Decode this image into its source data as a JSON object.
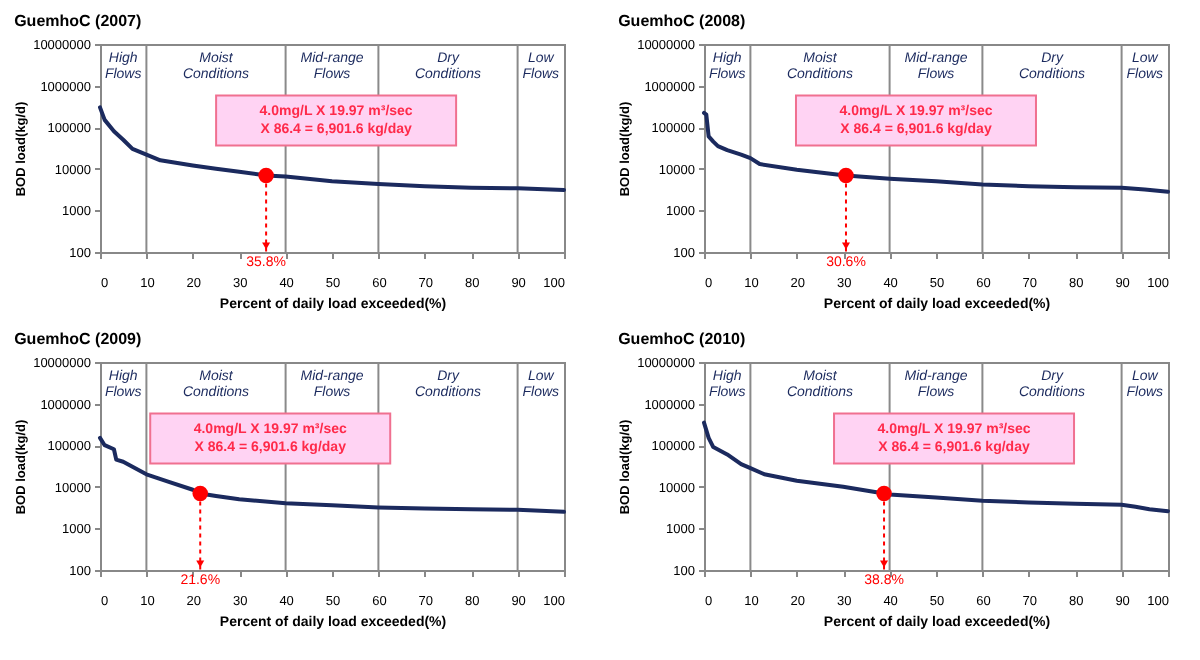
{
  "chart_data": [
    {
      "type": "line",
      "title": "GuemhoC (2007)",
      "xlabel": "Percent of daily load exceeded(%)",
      "ylabel": "BOD load(kg/d)",
      "log": true,
      "xlim": [
        0,
        100
      ],
      "xticks": [
        0,
        10,
        20,
        30,
        40,
        50,
        60,
        70,
        80,
        90,
        100
      ],
      "ylim": [
        100,
        10000000
      ],
      "yticks": [
        100,
        1000,
        10000,
        100000,
        1000000,
        10000000
      ],
      "series": [
        {
          "color": "#1b2a5e",
          "x": [
            0,
            1,
            3,
            5,
            7,
            10,
            13,
            20,
            25,
            30,
            35.8,
            40,
            50,
            60,
            70,
            80,
            90,
            100
          ],
          "values": [
            300000,
            150000,
            80000,
            50000,
            30000,
            22000,
            16000,
            12000,
            10000,
            8500,
            6900,
            6500,
            5000,
            4300,
            3800,
            3500,
            3400,
            3100
          ]
        },
        {
          "type": "scatter",
          "color": "#ff0000",
          "x": [
            35.8
          ],
          "values": [
            6901.6
          ]
        }
      ],
      "ref_lines": [
        {
          "axis": "x",
          "value": 10
        },
        {
          "axis": "x",
          "value": 40
        },
        {
          "axis": "x",
          "value": 60
        },
        {
          "axis": "x",
          "value": 90
        }
      ],
      "annotations": [
        "High Flows",
        "Moist Conditions",
        "Mid-range Flows",
        "Dry Conditions",
        "Low Flows",
        "4.0mg/L X 19.97 m³/sec X 86.4 = 6,901.6 kg/day",
        "35.8%"
      ]
    },
    {
      "type": "line",
      "title": "GuemhoC (2008)",
      "xlabel": "Percent of daily load exceeded(%)",
      "ylabel": "BOD load(kg/d)",
      "log": true,
      "xlim": [
        0,
        100
      ],
      "xticks": [
        0,
        10,
        20,
        30,
        40,
        50,
        60,
        70,
        80,
        90,
        100
      ],
      "ylim": [
        100,
        10000000
      ],
      "yticks": [
        100,
        1000,
        10000,
        100000,
        1000000,
        10000000
      ],
      "series": [
        {
          "color": "#1b2a5e",
          "x": [
            0,
            0.5,
            1,
            2,
            3,
            5,
            8,
            10,
            12,
            20,
            30,
            30.6,
            40,
            50,
            60,
            70,
            80,
            90,
            95,
            100
          ],
          "values": [
            220000,
            200000,
            60000,
            45000,
            35000,
            28000,
            22000,
            18000,
            13000,
            9500,
            7000,
            6900,
            5800,
            5000,
            4200,
            3800,
            3600,
            3500,
            3200,
            2800
          ]
        },
        {
          "type": "scatter",
          "color": "#ff0000",
          "x": [
            30.6
          ],
          "values": [
            6901.6
          ]
        }
      ],
      "ref_lines": [
        {
          "axis": "x",
          "value": 10
        },
        {
          "axis": "x",
          "value": 40
        },
        {
          "axis": "x",
          "value": 60
        },
        {
          "axis": "x",
          "value": 90
        }
      ],
      "annotations": [
        "High Flows",
        "Moist Conditions",
        "Mid-range Flows",
        "Dry Conditions",
        "Low Flows",
        "4.0mg/L X 19.97 m³/sec X 86.4 = 6,901.6 kg/day",
        "30.6%"
      ]
    },
    {
      "type": "line",
      "title": "GuemhoC (2009)",
      "xlabel": "Percent of daily load exceeded(%)",
      "ylabel": "BOD load(kg/d)",
      "log": true,
      "xlim": [
        0,
        100
      ],
      "xticks": [
        0,
        10,
        20,
        30,
        40,
        50,
        60,
        70,
        80,
        90,
        100
      ],
      "ylim": [
        100,
        10000000
      ],
      "yticks": [
        100,
        1000,
        10000,
        100000,
        1000000,
        10000000
      ],
      "series": [
        {
          "color": "#1b2a5e",
          "x": [
            0,
            1,
            3,
            3.5,
            5,
            10,
            15,
            20,
            21.6,
            25,
            30,
            40,
            50,
            60,
            70,
            80,
            90,
            100
          ],
          "values": [
            150000,
            100000,
            80000,
            45000,
            40000,
            20000,
            13000,
            8500,
            6900,
            6000,
            5000,
            4000,
            3600,
            3200,
            3000,
            2900,
            2800,
            2500
          ]
        },
        {
          "type": "scatter",
          "color": "#ff0000",
          "x": [
            21.6
          ],
          "values": [
            6901.6
          ]
        }
      ],
      "ref_lines": [
        {
          "axis": "x",
          "value": 10
        },
        {
          "axis": "x",
          "value": 40
        },
        {
          "axis": "x",
          "value": 60
        },
        {
          "axis": "x",
          "value": 90
        }
      ],
      "annotations": [
        "High Flows",
        "Moist Conditions",
        "Mid-range Flows",
        "Dry Conditions",
        "Low Flows",
        "4.0mg/L X 19.97 m³/sec X 86.4 = 6,901.6 kg/day",
        "21.6%"
      ]
    },
    {
      "type": "line",
      "title": "GuemhoC (2010)",
      "xlabel": "Percent of daily load exceeded(%)",
      "ylabel": "BOD load(kg/d)",
      "log": true,
      "xlim": [
        0,
        100
      ],
      "xticks": [
        0,
        10,
        20,
        30,
        40,
        50,
        60,
        70,
        80,
        90,
        100
      ],
      "ylim": [
        100,
        10000000
      ],
      "yticks": [
        100,
        1000,
        10000,
        100000,
        1000000,
        10000000
      ],
      "series": [
        {
          "color": "#1b2a5e",
          "x": [
            0,
            1,
            2,
            5,
            8,
            10,
            13,
            20,
            30,
            38.8,
            40,
            50,
            60,
            70,
            80,
            90,
            93,
            96,
            100
          ],
          "values": [
            350000,
            150000,
            90000,
            60000,
            35000,
            28000,
            20000,
            14000,
            10000,
            6900,
            6500,
            5500,
            4600,
            4200,
            3900,
            3700,
            3300,
            2900,
            2600
          ]
        },
        {
          "type": "scatter",
          "color": "#ff0000",
          "x": [
            38.8
          ],
          "values": [
            6901.6
          ]
        }
      ],
      "ref_lines": [
        {
          "axis": "x",
          "value": 10
        },
        {
          "axis": "x",
          "value": 40
        },
        {
          "axis": "x",
          "value": 60
        },
        {
          "axis": "x",
          "value": 90
        }
      ],
      "annotations": [
        "High Flows",
        "Moist Conditions",
        "Mid-range Flows",
        "Dry Conditions",
        "Low Flows",
        "4.0mg/L X 19.97 m³/sec X 86.4 = 6,901.6 kg/day",
        "38.8%"
      ]
    }
  ]
}
